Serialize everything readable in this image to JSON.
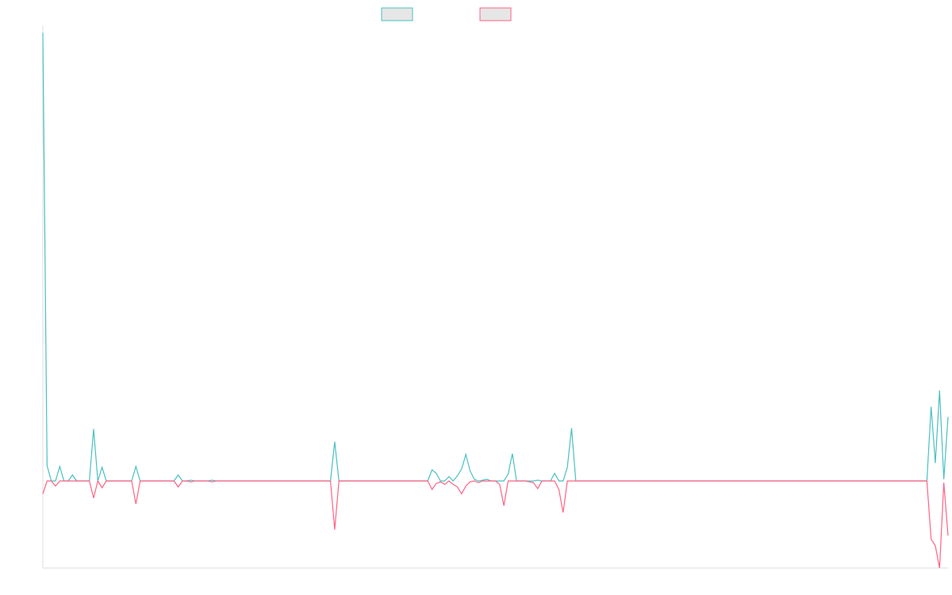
{
  "colors": {
    "series_a": "#4bc0c0",
    "series_b": "#ff6384",
    "legend_fill": "#e6e6e6",
    "axis": "#dddddd",
    "background": "#ffffff"
  },
  "chart_data": {
    "type": "line",
    "title": "",
    "xlabel": "",
    "ylabel": "",
    "grid": false,
    "legend": "top-center",
    "ylim": [
      -1.02,
      5.3
    ],
    "x": [
      0,
      1,
      2,
      3,
      4,
      5,
      6,
      7,
      8,
      9,
      10,
      11,
      12,
      13,
      14,
      15,
      16,
      17,
      18,
      19,
      20,
      21,
      22,
      23,
      24,
      25,
      26,
      27,
      28,
      29,
      30,
      31,
      32,
      33,
      34,
      35,
      36,
      37,
      38,
      39,
      40,
      41,
      42,
      43,
      44,
      45,
      46,
      47,
      48,
      49,
      50,
      51,
      52,
      53,
      54,
      55,
      56,
      57,
      58,
      59,
      60,
      61,
      62,
      63,
      64,
      65,
      66,
      67,
      68,
      69,
      70,
      71,
      72,
      73,
      74,
      75,
      76,
      77,
      78,
      79,
      80,
      81,
      82,
      83,
      84,
      85,
      86,
      87,
      88,
      89,
      90,
      91,
      92,
      93,
      94,
      95,
      96,
      97,
      98,
      99,
      100,
      101,
      102,
      103,
      104,
      105,
      106,
      107,
      108,
      109,
      110,
      111,
      112,
      113,
      114,
      115,
      116,
      117,
      118,
      119,
      120,
      121,
      122,
      123,
      124,
      125,
      126,
      127,
      128,
      129,
      130,
      131,
      132,
      133,
      134,
      135,
      136,
      137,
      138,
      139,
      140,
      141,
      142,
      143,
      144,
      145,
      146,
      147,
      148,
      149,
      150,
      151,
      152,
      153,
      154,
      155,
      156,
      157,
      158,
      159,
      160,
      161,
      162,
      163,
      164,
      165,
      166,
      167,
      168,
      169,
      170,
      171,
      172,
      173,
      174,
      175,
      176,
      177,
      178,
      179,
      180,
      181,
      182,
      183,
      184,
      185,
      186,
      187,
      188,
      189,
      190,
      191,
      192,
      193,
      194,
      195,
      196,
      197,
      198,
      199,
      200,
      201,
      202,
      203,
      204,
      205,
      206,
      207,
      208,
      209,
      210,
      211,
      212,
      213,
      214
    ],
    "series": [
      {
        "values": [
          5.25,
          0.18,
          0.0,
          0.0,
          0.17,
          0.0,
          0.0,
          0.07,
          0.0,
          0.0,
          0.0,
          0.0,
          0.61,
          0.0,
          0.16,
          0.0,
          0.0,
          0.0,
          0.0,
          0.0,
          0.0,
          0.0,
          0.17,
          0.0,
          0.0,
          0.0,
          0.0,
          0.0,
          0.0,
          0.0,
          0.0,
          0.0,
          0.07,
          0.0,
          0.0,
          0.01,
          0.0,
          0.0,
          0.0,
          0.0,
          0.01,
          0.0,
          0.0,
          0.0,
          0.0,
          0.0,
          0.0,
          0.0,
          0.0,
          0.0,
          0.0,
          0.0,
          0.0,
          0.0,
          0.0,
          0.0,
          0.0,
          0.0,
          0.0,
          0.0,
          0.0,
          0.0,
          0.0,
          0.0,
          0.0,
          0.0,
          0.0,
          0.0,
          0.0,
          0.46,
          0.0,
          0.0,
          0.0,
          0.0,
          0.0,
          0.0,
          0.0,
          0.0,
          0.0,
          0.0,
          0.0,
          0.0,
          0.0,
          0.0,
          0.0,
          0.0,
          0.0,
          0.0,
          0.0,
          0.0,
          0.0,
          0.0,
          0.13,
          0.09,
          0.0,
          0.0,
          0.05,
          0.0,
          0.06,
          0.14,
          0.31,
          0.12,
          0.02,
          0.0,
          0.01,
          0.02,
          0.0,
          0.0,
          0.0,
          0.0,
          0.08,
          0.32,
          0.0,
          0.0,
          0.0,
          0.0,
          0.0,
          0.01,
          0.0,
          0.0,
          0.0,
          0.09,
          0.0,
          0.0,
          0.16,
          0.62,
          0.0,
          0.0,
          0.0,
          0.0,
          0.0,
          0.0,
          0.0,
          0.0,
          0.0,
          0.0,
          0.0,
          0.0,
          0.0,
          0.0,
          0.0,
          0.0,
          0.0,
          0.0,
          0.0,
          0.0,
          0.0,
          0.0,
          0.0,
          0.0,
          0.0,
          0.0,
          0.0,
          0.0,
          0.0,
          0.0,
          0.0,
          0.0,
          0.0,
          0.0,
          0.0,
          0.0,
          0.0,
          0.0,
          0.0,
          0.0,
          0.0,
          0.0,
          0.0,
          0.0,
          0.0,
          0.0,
          0.0,
          0.0,
          0.0,
          0.0,
          0.0,
          0.0,
          0.0,
          0.0,
          0.0,
          0.0,
          0.0,
          0.0,
          0.0,
          0.0,
          0.0,
          0.0,
          0.0,
          0.0,
          0.0,
          0.0,
          0.0,
          0.0,
          0.0,
          0.0,
          0.0,
          0.0,
          0.0,
          0.0,
          0.0,
          0.0,
          0.0,
          0.0,
          0.0,
          0.0,
          0.0,
          0.0,
          0.0,
          0.0,
          0.87,
          0.21,
          1.06,
          0.02,
          0.75
        ]
      },
      {
        "values": [
          -0.15,
          0.0,
          0.0,
          -0.06,
          0.0,
          0.0,
          0.0,
          0.0,
          0.0,
          0.0,
          0.0,
          0.0,
          -0.2,
          0.0,
          -0.08,
          0.0,
          0.0,
          0.0,
          0.0,
          0.0,
          0.0,
          0.0,
          -0.27,
          0.0,
          0.0,
          0.0,
          0.0,
          0.0,
          0.0,
          0.0,
          0.0,
          0.0,
          -0.07,
          0.0,
          0.0,
          -0.01,
          0.0,
          0.0,
          0.0,
          0.0,
          -0.01,
          0.0,
          0.0,
          0.0,
          0.0,
          0.0,
          0.0,
          0.0,
          0.0,
          0.0,
          0.0,
          0.0,
          0.0,
          0.0,
          0.0,
          0.0,
          0.0,
          0.0,
          0.0,
          0.0,
          0.0,
          0.0,
          0.0,
          0.0,
          0.0,
          0.0,
          0.0,
          0.0,
          0.0,
          -0.57,
          0.0,
          0.0,
          0.0,
          0.0,
          0.0,
          0.0,
          0.0,
          0.0,
          0.0,
          0.0,
          0.0,
          0.0,
          0.0,
          0.0,
          0.0,
          0.0,
          0.0,
          0.0,
          0.0,
          0.0,
          0.0,
          0.0,
          -0.1,
          -0.03,
          -0.01,
          -0.04,
          0.0,
          -0.04,
          -0.07,
          -0.15,
          -0.06,
          -0.01,
          0.0,
          -0.02,
          0.0,
          0.0,
          0.0,
          0.0,
          -0.04,
          -0.29,
          0.0,
          0.0,
          0.0,
          0.0,
          0.0,
          -0.01,
          -0.02,
          -0.09,
          0.0,
          0.0,
          0.0,
          0.0,
          -0.1,
          -0.37,
          0.0,
          0.0,
          0.0,
          0.0,
          0.0,
          0.0,
          0.0,
          0.0,
          0.0,
          0.0,
          0.0,
          0.0,
          0.0,
          0.0,
          0.0,
          0.0,
          0.0,
          0.0,
          0.0,
          0.0,
          0.0,
          0.0,
          0.0,
          0.0,
          0.0,
          0.0,
          0.0,
          0.0,
          0.0,
          0.0,
          0.0,
          0.0,
          0.0,
          0.0,
          0.0,
          0.0,
          0.0,
          0.0,
          0.0,
          0.0,
          0.0,
          0.0,
          0.0,
          0.0,
          0.0,
          0.0,
          0.0,
          0.0,
          0.0,
          0.0,
          0.0,
          0.0,
          0.0,
          0.0,
          0.0,
          0.0,
          0.0,
          0.0,
          0.0,
          0.0,
          0.0,
          0.0,
          0.0,
          0.0,
          0.0,
          0.0,
          0.0,
          0.0,
          0.0,
          0.0,
          0.0,
          0.0,
          0.0,
          0.0,
          0.0,
          0.0,
          0.0,
          0.0,
          0.0,
          0.0,
          0.0,
          0.0,
          0.0,
          0.0,
          0.0,
          0.0,
          -0.68,
          -0.76,
          -1.02,
          -0.02,
          -0.64
        ]
      }
    ]
  }
}
